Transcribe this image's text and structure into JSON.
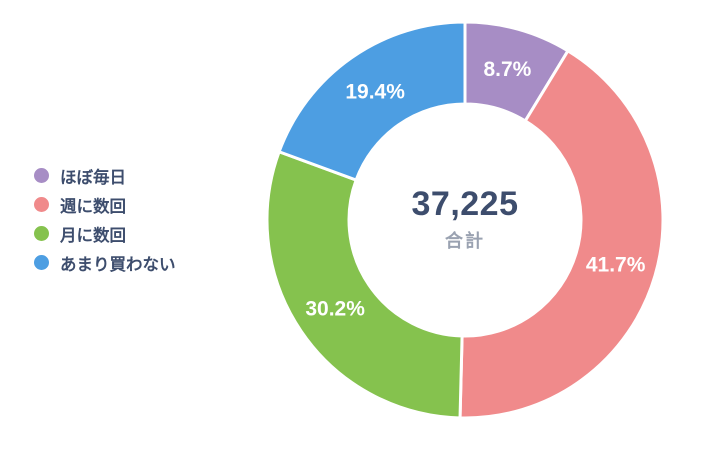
{
  "chart_data": {
    "type": "pie",
    "subtype": "donut",
    "categories": [
      "ほぼ毎日",
      "週に数回",
      "月に数回",
      "あまり買わない"
    ],
    "values": [
      8.7,
      41.7,
      30.2,
      19.4
    ],
    "value_labels": [
      "8.7%",
      "41.7%",
      "30.2%",
      "19.4%"
    ],
    "colors": [
      "#a78dc5",
      "#f08a8b",
      "#85c24e",
      "#4d9ee2"
    ],
    "start_angle_deg": 0,
    "direction": "clockwise",
    "legend_position": "left",
    "center": {
      "total_display": "37,225",
      "caption": "合計"
    }
  },
  "colors": {
    "background": "#ffffff",
    "slice_gap": "#ffffff",
    "slice_label": "#ffffff",
    "center_total": "#3d4d6d",
    "center_caption": "#9aa2b1",
    "legend_text": "#3d4d6d"
  }
}
